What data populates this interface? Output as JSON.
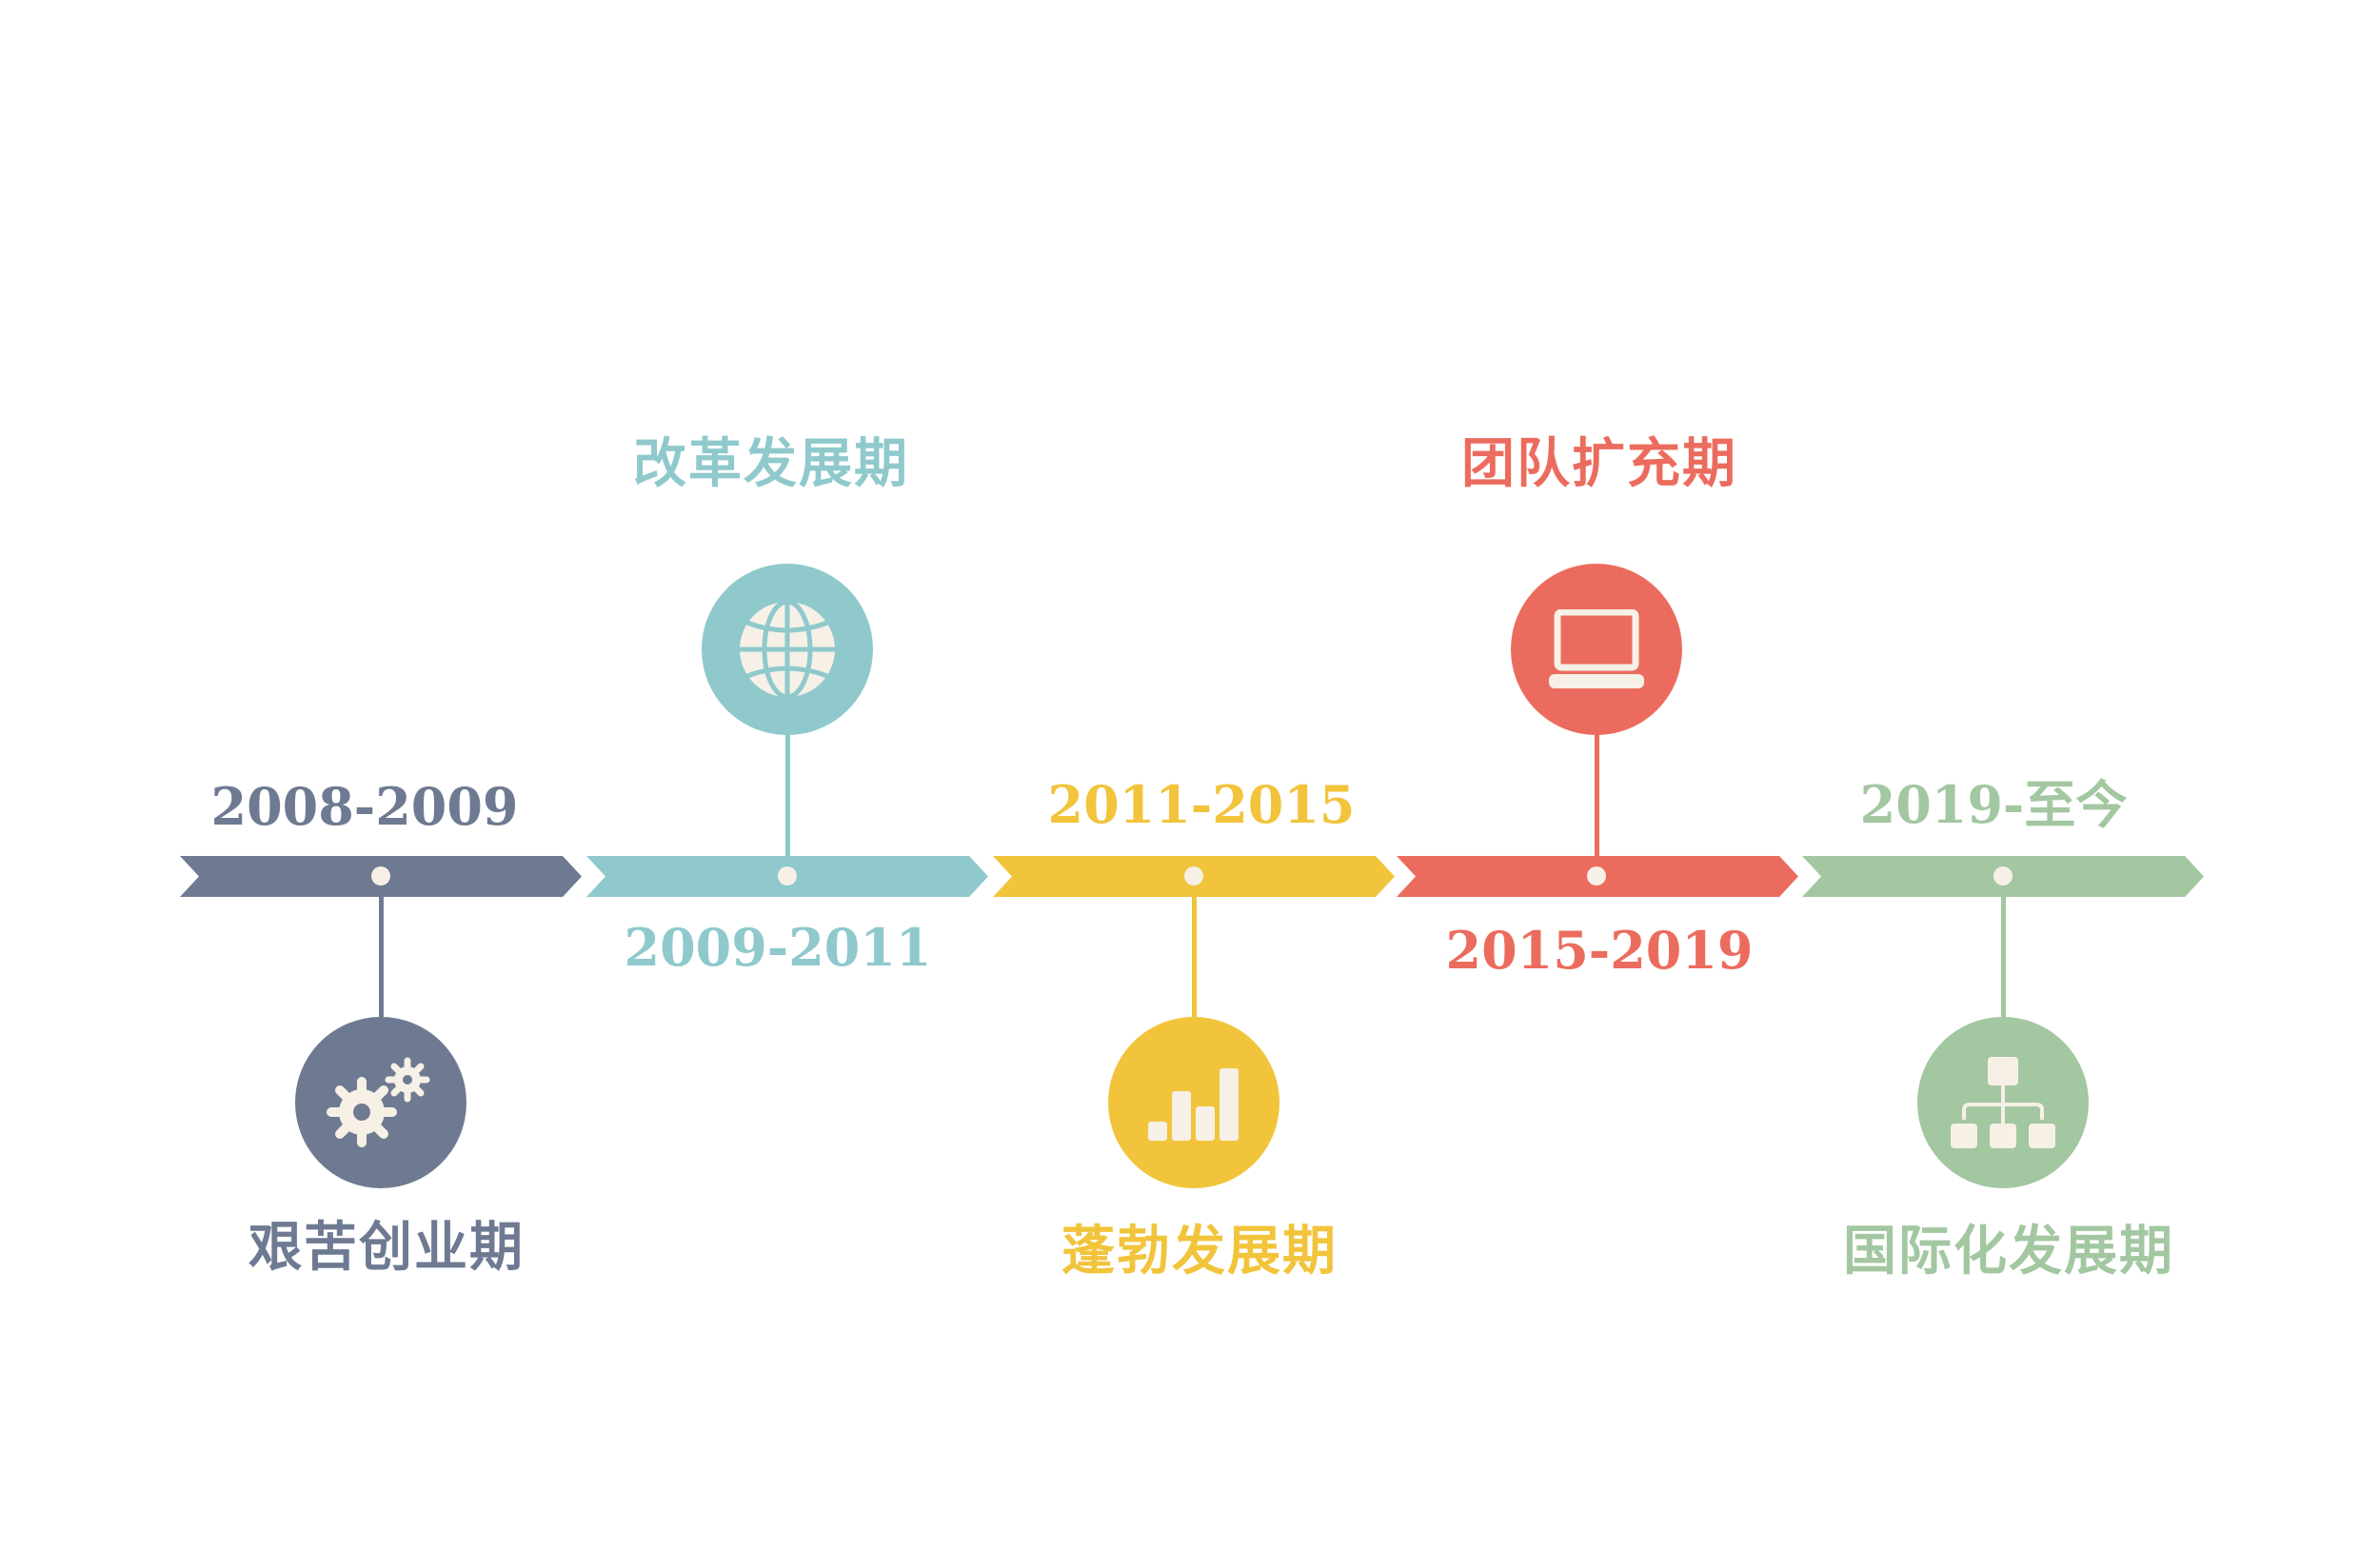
{
  "colors": {
    "slate": "#6e7a91",
    "teal": "#8fc9cc",
    "yellow": "#f2c43c",
    "red": "#eb6c5e",
    "green": "#a3c7a1",
    "icon": "#f6f0e6"
  },
  "stages": [
    {
      "years": "2008-2009",
      "title": "艰苦创业期",
      "icon": "gears-icon"
    },
    {
      "years": "2009-2011",
      "title": "改革发展期",
      "icon": "globe-icon"
    },
    {
      "years": "2011-2015",
      "title": "蓬勃发展期",
      "icon": "bar-chart-icon"
    },
    {
      "years": "2015-2019",
      "title": "团队扩充期",
      "icon": "laptop-icon"
    },
    {
      "years": "2019-至今",
      "title": "国际化发展期",
      "icon": "org-chart-icon"
    }
  ]
}
